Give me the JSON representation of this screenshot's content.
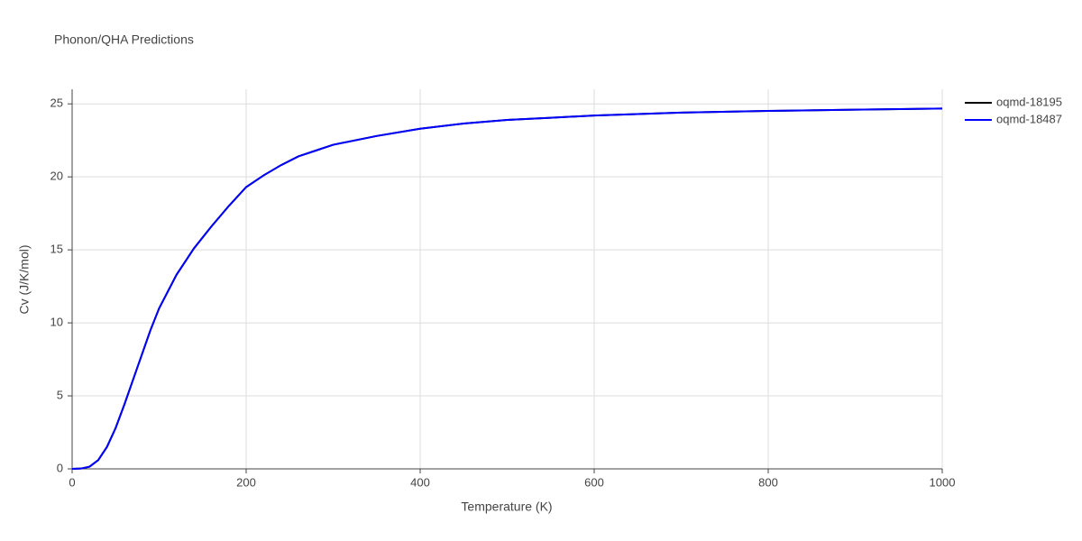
{
  "chart_data": {
    "type": "line",
    "title": "Phonon/QHA Predictions",
    "x_label": "Temperature (K)",
    "y_label": "Cv (J/K/mol)",
    "x": [
      0,
      10,
      20,
      30,
      40,
      50,
      60,
      70,
      80,
      90,
      100,
      120,
      140,
      160,
      180,
      200,
      220,
      240,
      260,
      280,
      300,
      350,
      400,
      450,
      500,
      550,
      600,
      650,
      700,
      800,
      900,
      1000
    ],
    "series": [
      {
        "name": "oqmd-18195",
        "color": "#000000",
        "values": [
          0,
          0.02,
          0.15,
          0.6,
          1.5,
          2.8,
          4.4,
          6.1,
          7.8,
          9.5,
          11.0,
          13.3,
          15.1,
          16.6,
          18.0,
          19.3,
          20.1,
          20.8,
          21.4,
          21.8,
          22.2,
          22.8,
          23.3,
          23.65,
          23.9,
          24.05,
          24.2,
          24.3,
          24.4,
          24.52,
          24.6,
          24.68
        ]
      },
      {
        "name": "oqmd-18487",
        "color": "#0000ff",
        "values": [
          0,
          0.02,
          0.15,
          0.6,
          1.5,
          2.8,
          4.4,
          6.1,
          7.8,
          9.5,
          11.0,
          13.3,
          15.1,
          16.6,
          18.0,
          19.3,
          20.1,
          20.8,
          21.4,
          21.8,
          22.2,
          22.8,
          23.3,
          23.65,
          23.9,
          24.05,
          24.2,
          24.3,
          24.4,
          24.52,
          24.6,
          24.68
        ]
      }
    ],
    "xlim": [
      0,
      1000
    ],
    "xticks": [
      0,
      200,
      400,
      600,
      800,
      1000
    ],
    "ylim": [
      0,
      26
    ],
    "yticks": [
      0,
      5,
      10,
      15,
      20,
      25
    ],
    "grid": true,
    "legend": "top-right"
  }
}
